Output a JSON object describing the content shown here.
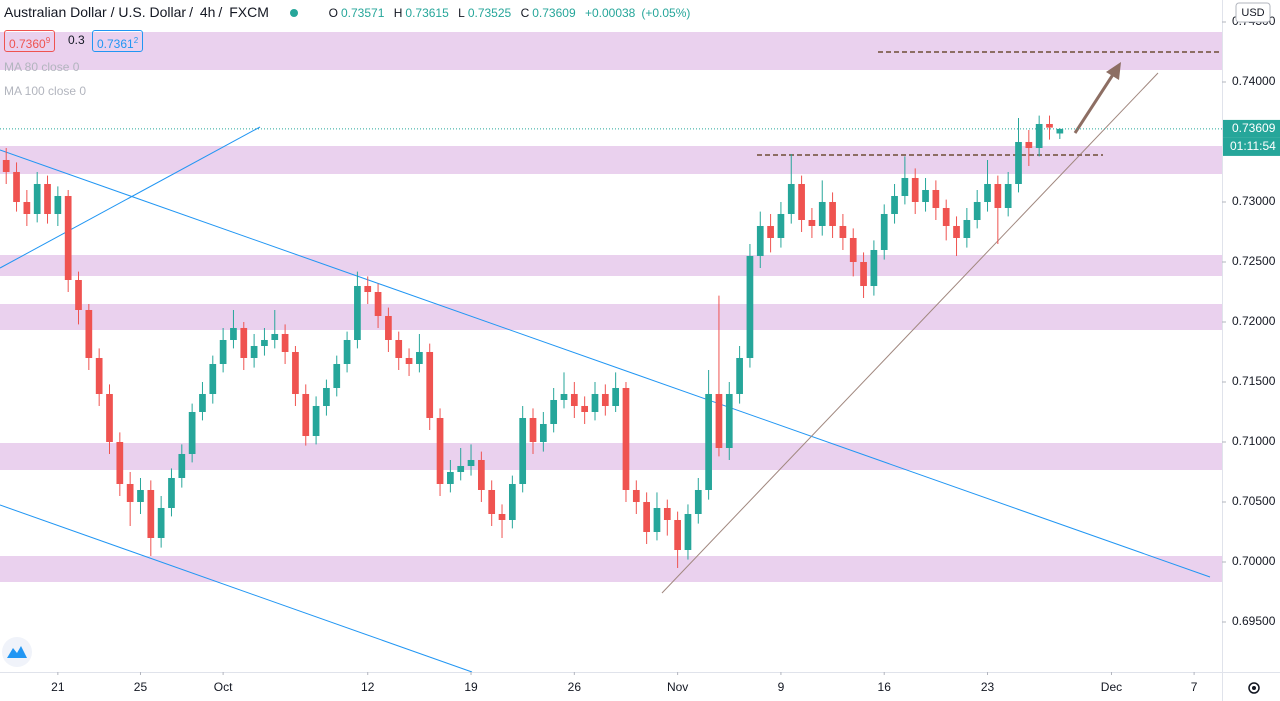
{
  "header": {
    "symbol": "Australian Dollar / U.S. Dollar",
    "interval": "4h",
    "exchange": "FXCM",
    "ohlc_letters": [
      "O",
      "H",
      "L",
      "C"
    ],
    "change": "+0.00038",
    "change_pct": "(+0.05%)"
  },
  "quote": {
    "bid": "0.7360",
    "bid_sup": "9",
    "spread": "0.3",
    "ask": "0.7361",
    "ask_sup": "2"
  },
  "indicators": [
    "MA 80 close 0",
    "MA 100 close 0"
  ],
  "chart_data": {
    "type": "candlestick",
    "x": [
      -2.5,
      -2,
      -1.5,
      -1,
      -0.5,
      0,
      0.5,
      1,
      1.5,
      2,
      2.5,
      3,
      3.5,
      4,
      4.5,
      5,
      5.5,
      6,
      6.5,
      7,
      7.5,
      8,
      8.5,
      9,
      9.5,
      10,
      10.5,
      11,
      11.5,
      12,
      12.5,
      13,
      13.5,
      14,
      14.5,
      15,
      15.5,
      16,
      16.5,
      17,
      17.5,
      18,
      18.5,
      19,
      19.5,
      20,
      20.5,
      21,
      21.5,
      22,
      22.5,
      23,
      23.5,
      24,
      24.5,
      25,
      25.5,
      26,
      26.5,
      27,
      27.5,
      28,
      28.5,
      29,
      29.5,
      30,
      30.5,
      31,
      31.5,
      32,
      32.5,
      33,
      33.5,
      34,
      34.5,
      35,
      35.5,
      36,
      36.5,
      37,
      37.5,
      38,
      38.5,
      39,
      39.5,
      40,
      40.5,
      41,
      41.5,
      42,
      42.5,
      43,
      43.5,
      44,
      44.5,
      45,
      45.5,
      46,
      46.5,
      47,
      47.5,
      48,
      48.5
    ],
    "open": [
      0.7335,
      0.7325,
      0.73,
      0.729,
      0.7315,
      0.729,
      0.7305,
      0.7235,
      0.721,
      0.717,
      0.714,
      0.71,
      0.7065,
      0.705,
      0.706,
      0.702,
      0.7045,
      0.707,
      0.709,
      0.7125,
      0.714,
      0.7165,
      0.7185,
      0.7195,
      0.717,
      0.718,
      0.7185,
      0.719,
      0.7175,
      0.714,
      0.7105,
      0.713,
      0.7145,
      0.7165,
      0.7185,
      0.723,
      0.7225,
      0.7205,
      0.7185,
      0.717,
      0.7165,
      0.7175,
      0.712,
      0.7065,
      0.7075,
      0.708,
      0.7085,
      0.706,
      0.704,
      0.7035,
      0.7065,
      0.712,
      0.71,
      0.7115,
      0.7135,
      0.714,
      0.713,
      0.7125,
      0.714,
      0.713,
      0.7145,
      0.706,
      0.705,
      0.7025,
      0.7045,
      0.7035,
      0.701,
      0.704,
      0.706,
      0.714,
      0.7095,
      0.714,
      0.717,
      0.7255,
      0.728,
      0.727,
      0.729,
      0.7315,
      0.7285,
      0.728,
      0.73,
      0.728,
      0.727,
      0.725,
      0.723,
      0.726,
      0.729,
      0.7305,
      0.732,
      0.73,
      0.731,
      0.7295,
      0.728,
      0.727,
      0.7285,
      0.73,
      0.7315,
      0.7295,
      0.7315,
      0.735,
      0.7345,
      0.7365,
      0.73571
    ],
    "high": [
      0.7345,
      0.7333,
      0.731,
      0.7325,
      0.7322,
      0.7313,
      0.731,
      0.7242,
      0.7215,
      0.7178,
      0.7148,
      0.7108,
      0.7075,
      0.707,
      0.7068,
      0.7055,
      0.7078,
      0.7098,
      0.7132,
      0.715,
      0.7172,
      0.7195,
      0.721,
      0.72,
      0.719,
      0.7195,
      0.721,
      0.7198,
      0.718,
      0.7148,
      0.7138,
      0.7152,
      0.7172,
      0.7192,
      0.7242,
      0.7238,
      0.7232,
      0.7212,
      0.7192,
      0.7178,
      0.719,
      0.7182,
      0.7128,
      0.7085,
      0.7095,
      0.7098,
      0.7092,
      0.7068,
      0.7048,
      0.7072,
      0.713,
      0.7128,
      0.7125,
      0.7145,
      0.7158,
      0.715,
      0.7138,
      0.715,
      0.7148,
      0.7158,
      0.715,
      0.7068,
      0.7058,
      0.7058,
      0.7052,
      0.7042,
      0.7048,
      0.707,
      0.716,
      0.7222,
      0.715,
      0.718,
      0.7265,
      0.7292,
      0.729,
      0.73,
      0.734,
      0.7322,
      0.7295,
      0.7318,
      0.7308,
      0.729,
      0.7278,
      0.7258,
      0.7268,
      0.7298,
      0.7315,
      0.7338,
      0.7328,
      0.732,
      0.7318,
      0.7302,
      0.7288,
      0.7295,
      0.731,
      0.7335,
      0.7322,
      0.7325,
      0.737,
      0.736,
      0.7372,
      0.7372,
      0.73615
    ],
    "low": [
      0.7315,
      0.7292,
      0.728,
      0.7283,
      0.7282,
      0.728,
      0.7225,
      0.7198,
      0.716,
      0.713,
      0.709,
      0.7055,
      0.703,
      0.704,
      0.7005,
      0.7012,
      0.7038,
      0.7062,
      0.7083,
      0.7118,
      0.7132,
      0.7158,
      0.7178,
      0.716,
      0.7162,
      0.7172,
      0.7178,
      0.7165,
      0.713,
      0.7097,
      0.7098,
      0.7122,
      0.7138,
      0.7158,
      0.7178,
      0.7215,
      0.7195,
      0.7175,
      0.716,
      0.7155,
      0.7158,
      0.711,
      0.7055,
      0.7058,
      0.7068,
      0.7072,
      0.705,
      0.703,
      0.702,
      0.7028,
      0.7058,
      0.709,
      0.7092,
      0.7108,
      0.7128,
      0.712,
      0.7115,
      0.7118,
      0.7122,
      0.7125,
      0.705,
      0.704,
      0.7015,
      0.7018,
      0.7022,
      0.6995,
      0.7002,
      0.7032,
      0.7052,
      0.7088,
      0.7085,
      0.7132,
      0.7162,
      0.7245,
      0.7258,
      0.7262,
      0.7282,
      0.7275,
      0.727,
      0.7272,
      0.727,
      0.726,
      0.7238,
      0.722,
      0.7222,
      0.7252,
      0.7282,
      0.7298,
      0.729,
      0.7292,
      0.7285,
      0.7268,
      0.7255,
      0.7262,
      0.7278,
      0.7292,
      0.7265,
      0.7288,
      0.7308,
      0.733,
      0.7338,
      0.7352,
      0.73525
    ],
    "close": [
      0.7325,
      0.73,
      0.729,
      0.7315,
      0.729,
      0.7305,
      0.7235,
      0.721,
      0.717,
      0.714,
      0.71,
      0.7065,
      0.705,
      0.706,
      0.702,
      0.7045,
      0.707,
      0.709,
      0.7125,
      0.714,
      0.7165,
      0.7185,
      0.7195,
      0.717,
      0.718,
      0.7185,
      0.719,
      0.7175,
      0.714,
      0.7105,
      0.713,
      0.7145,
      0.7165,
      0.7185,
      0.723,
      0.7225,
      0.7205,
      0.7185,
      0.717,
      0.7165,
      0.7175,
      0.712,
      0.7065,
      0.7075,
      0.708,
      0.7085,
      0.706,
      0.704,
      0.7035,
      0.7065,
      0.712,
      0.71,
      0.7115,
      0.7135,
      0.714,
      0.713,
      0.7125,
      0.714,
      0.713,
      0.7145,
      0.706,
      0.705,
      0.7025,
      0.7045,
      0.7035,
      0.701,
      0.704,
      0.706,
      0.714,
      0.7095,
      0.714,
      0.717,
      0.7255,
      0.728,
      0.727,
      0.729,
      0.7315,
      0.7285,
      0.728,
      0.73,
      0.728,
      0.727,
      0.725,
      0.723,
      0.726,
      0.729,
      0.7305,
      0.732,
      0.73,
      0.731,
      0.7295,
      0.728,
      0.727,
      0.7285,
      0.73,
      0.7315,
      0.7295,
      0.7315,
      0.735,
      0.7345,
      0.7365,
      0.7362,
      0.73609
    ],
    "up_color": "#26a69a",
    "down_color": "#ef5350",
    "xlim": [
      -2.8,
      56.35
    ],
    "xticks": [
      {
        "value": 0,
        "label": "21"
      },
      {
        "value": 4,
        "label": "25"
      },
      {
        "value": 8,
        "label": "Oct"
      },
      {
        "value": 15,
        "label": "12"
      },
      {
        "value": 20,
        "label": "19"
      },
      {
        "value": 25,
        "label": "26"
      },
      {
        "value": 30,
        "label": "Nov"
      },
      {
        "value": 35,
        "label": "9"
      },
      {
        "value": 40,
        "label": "16"
      },
      {
        "value": 45,
        "label": "23"
      },
      {
        "value": 51,
        "label": "Dec"
      },
      {
        "value": 55,
        "label": "7"
      }
    ],
    "ylim": [
      0.690833,
      0.746833
    ],
    "yticks": [
      {
        "value": 0.695,
        "label": "0.69500"
      },
      {
        "value": 0.7,
        "label": "0.70000"
      },
      {
        "value": 0.705,
        "label": "0.70500"
      },
      {
        "value": 0.71,
        "label": "0.71000"
      },
      {
        "value": 0.715,
        "label": "0.71500"
      },
      {
        "value": 0.72,
        "label": "0.72000"
      },
      {
        "value": 0.725,
        "label": "0.72500"
      },
      {
        "value": 0.73,
        "label": "0.73000"
      },
      {
        "value": 0.74,
        "label": "0.74000"
      },
      {
        "value": 0.745,
        "label": "0.74500"
      }
    ],
    "currency": "USD",
    "countdown": "01:11:54"
  }
}
